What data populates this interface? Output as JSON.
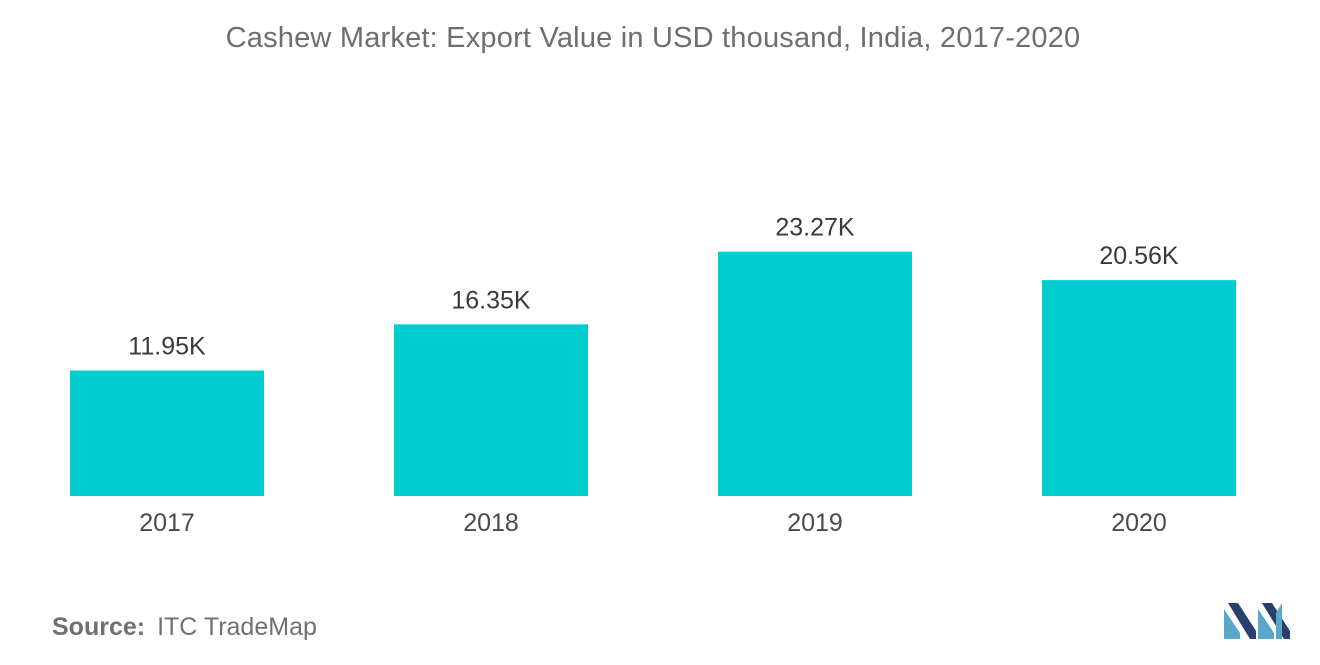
{
  "chart_data": {
    "type": "bar",
    "title": "Cashew Market: Export Value in USD thousand, India, 2017-2020",
    "xlabel": "",
    "ylabel": "",
    "categories": [
      "2017",
      "2018",
      "2019",
      "2020"
    ],
    "values": [
      11.95,
      16.35,
      23.27,
      20.56
    ],
    "data_labels": [
      "11.95K",
      "16.35K",
      "23.27K",
      "20.56K"
    ],
    "unit": "USD thousand",
    "ylim": [
      0,
      30
    ],
    "grid": false,
    "legend": "none",
    "bar_color": "#00cdd0"
  },
  "source": {
    "label": "Source:",
    "text": "ITC TradeMap"
  },
  "logo": {
    "icon": "mordor-intelligence-logo",
    "colors": [
      "#5ba7c9",
      "#2a3f6e"
    ]
  }
}
